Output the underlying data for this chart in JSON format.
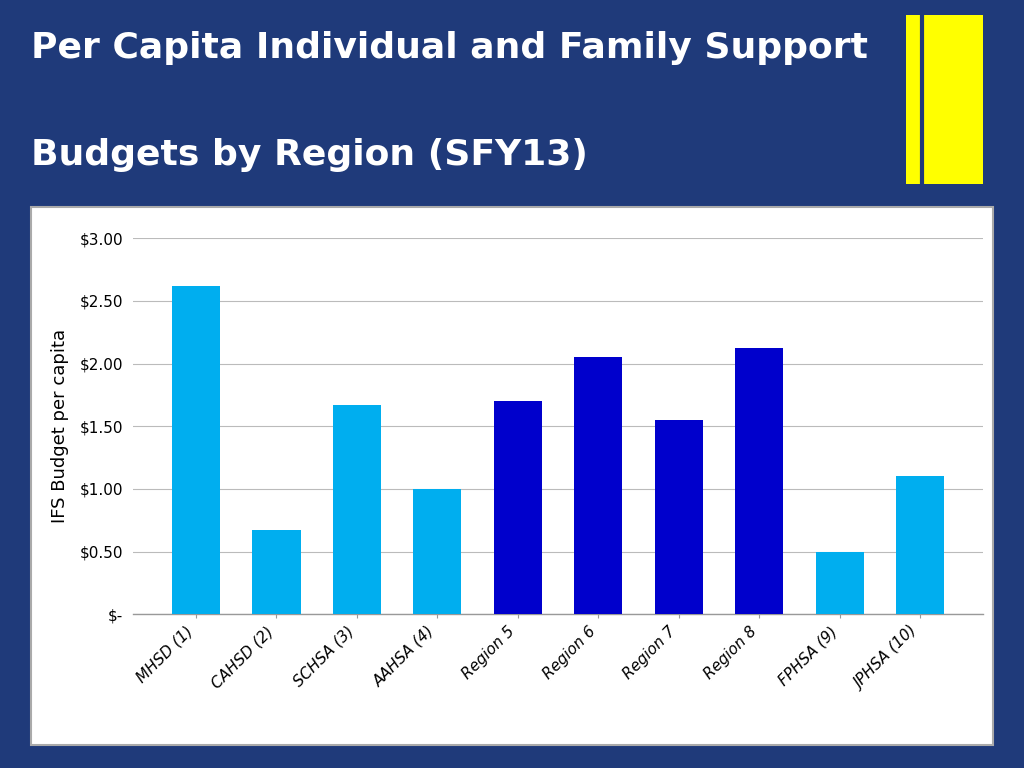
{
  "categories": [
    "MHSD (1)",
    "CAHSD (2)",
    "SCHSA (3)",
    "AAHSA (4)",
    "Region 5",
    "Region 6",
    "Region 7",
    "Region 8",
    "FPHSA (9)",
    "JPHSA (10)"
  ],
  "values": [
    2.62,
    0.67,
    1.67,
    1.0,
    1.7,
    2.05,
    1.55,
    2.12,
    0.5,
    1.1
  ],
  "bar_colors": [
    "#00AEEF",
    "#00AEEF",
    "#00AEEF",
    "#00AEEF",
    "#0000CC",
    "#0000CC",
    "#0000CC",
    "#0000CC",
    "#00AEEF",
    "#00AEEF"
  ],
  "title_line1": "Per Capita Individual and Family Support",
  "title_line2": "Budgets by Region (SFY13)",
  "ylabel": "IFS Budget per capita",
  "ylim": [
    0,
    3.0
  ],
  "yticks": [
    0,
    0.5,
    1.0,
    1.5,
    2.0,
    2.5,
    3.0
  ],
  "ytick_labels": [
    "$-",
    "$0.50",
    "$1.00",
    "$1.50",
    "$2.00",
    "$2.50",
    "$3.00"
  ],
  "title_color": "#FFFFFF",
  "title_fontsize": 26,
  "ylabel_fontsize": 13,
  "tick_fontsize": 11,
  "plot_bg": "#FFFFFF",
  "outer_bg": "#1F3A7A",
  "chart_border_color": "#AAAAAA",
  "yellow_rect_color": "#FFFF00",
  "grid_color": "#BBBBBB"
}
